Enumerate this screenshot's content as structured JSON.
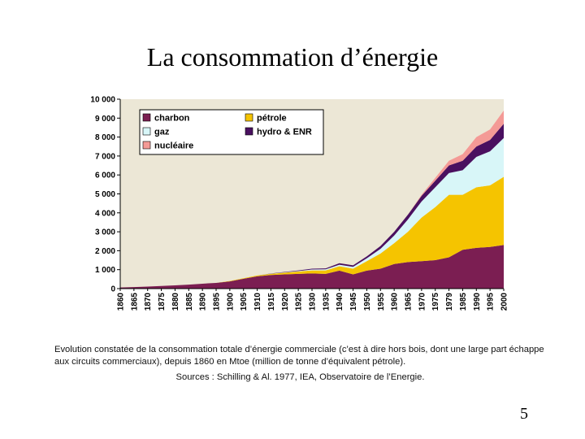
{
  "slide": {
    "title": "La consommation d’énergie",
    "caption": "Evolution constatée de la consommation totale d’énergie commerciale (c’est à dire hors bois, dont une large part échappe aux circuits commerciaux), depuis 1860 en Mtoe (million de tonne d’équivalent pétrole).",
    "source": "Sources : Schilling & Al. 1977, IEA, Observatoire de l’Energie.",
    "page_number": "5"
  },
  "chart_data": {
    "type": "area",
    "stacked": true,
    "x": [
      "1860",
      "1865",
      "1870",
      "1875",
      "1880",
      "1885",
      "1890",
      "1895",
      "1900",
      "1905",
      "1910",
      "1915",
      "1920",
      "1925",
      "1930",
      "1935",
      "1940",
      "1945",
      "1950",
      "1955",
      "1960",
      "1965",
      "1970",
      "1975",
      "1979",
      "1985",
      "1990",
      "1995",
      "2000"
    ],
    "ylim": [
      0,
      10000
    ],
    "yticks": [
      0,
      1000,
      2000,
      3000,
      4000,
      5000,
      6000,
      7000,
      8000,
      9000,
      10000
    ],
    "ytick_labels": [
      "0",
      "1 000",
      "2 000",
      "3 000",
      "4 000",
      "5 000",
      "6 000",
      "7 000",
      "8 000",
      "9 000",
      "10 000"
    ],
    "series": [
      {
        "name": "charbon",
        "color": "#7b1e52",
        "values": [
          60,
          80,
          110,
          140,
          170,
          210,
          260,
          300,
          380,
          520,
          650,
          720,
          750,
          780,
          800,
          780,
          950,
          750,
          950,
          1050,
          1300,
          1400,
          1450,
          1500,
          1650,
          2050,
          2150,
          2200,
          2300
        ]
      },
      {
        "name": "pétrole",
        "color": "#f5c400",
        "values": [
          0,
          0,
          0,
          0,
          0,
          0,
          0,
          0,
          20,
          30,
          40,
          60,
          90,
          120,
          160,
          180,
          230,
          300,
          500,
          800,
          1100,
          1600,
          2300,
          2800,
          3300,
          2900,
          3200,
          3250,
          3600
        ]
      },
      {
        "name": "gaz",
        "color": "#d8f6f8",
        "values": [
          0,
          0,
          0,
          0,
          0,
          0,
          0,
          0,
          0,
          0,
          0,
          10,
          20,
          30,
          50,
          60,
          80,
          100,
          150,
          250,
          400,
          650,
          850,
          1050,
          1150,
          1300,
          1600,
          1800,
          2050
        ]
      },
      {
        "name": "hydro & ENR",
        "color": "#4a1060",
        "values": [
          0,
          0,
          0,
          0,
          0,
          0,
          0,
          0,
          0,
          0,
          0,
          10,
          20,
          30,
          40,
          50,
          80,
          80,
          100,
          150,
          200,
          250,
          300,
          350,
          400,
          500,
          550,
          600,
          750
        ]
      },
      {
        "name": "nucléaire",
        "color": "#f49a96",
        "values": [
          0,
          0,
          0,
          0,
          0,
          0,
          0,
          0,
          0,
          0,
          0,
          0,
          0,
          0,
          0,
          0,
          0,
          0,
          0,
          0,
          0,
          0,
          50,
          150,
          250,
          350,
          500,
          550,
          700
        ]
      }
    ],
    "plot_background": "#ece7d6",
    "legend": {
      "placement": "top-left",
      "columns": 2
    }
  }
}
